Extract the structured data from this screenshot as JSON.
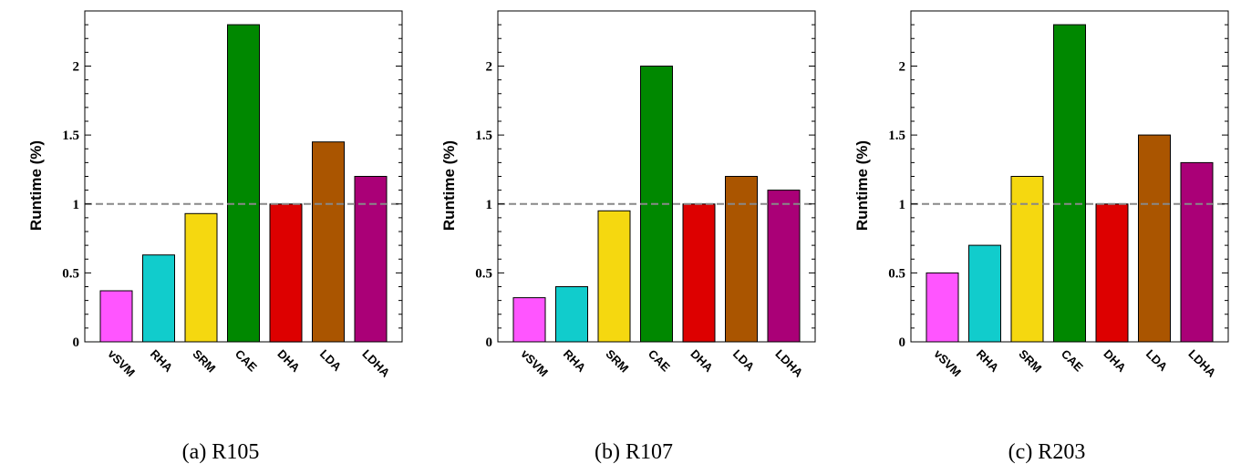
{
  "chart_data": [
    {
      "type": "bar",
      "caption": "(a) R105",
      "ylabel": "Runtime (%)",
      "categories": [
        "vSVM",
        "RHA",
        "SRM",
        "CAE",
        "DHA",
        "LDA",
        "LDHA"
      ],
      "values": [
        0.37,
        0.63,
        0.93,
        2.3,
        1.0,
        1.45,
        1.2
      ],
      "ylim": [
        0,
        2.4
      ],
      "yticks": [
        0,
        0.5,
        1,
        1.5,
        2
      ],
      "ytick_labels": [
        "0",
        "0.5",
        "1",
        "1.5",
        "2"
      ],
      "reference_line": 1,
      "grid": false
    },
    {
      "type": "bar",
      "caption": "(b) R107",
      "ylabel": "Runtime (%)",
      "categories": [
        "vSVM",
        "RHA",
        "SRM",
        "CAE",
        "DHA",
        "LDA",
        "LDHA"
      ],
      "values": [
        0.32,
        0.4,
        0.95,
        2.0,
        1.0,
        1.2,
        1.1
      ],
      "ylim": [
        0,
        2.4
      ],
      "yticks": [
        0,
        0.5,
        1,
        1.5,
        2
      ],
      "ytick_labels": [
        "0",
        "0.5",
        "1",
        "1.5",
        "2"
      ],
      "reference_line": 1,
      "grid": false
    },
    {
      "type": "bar",
      "caption": "(c) R203",
      "ylabel": "Runtime (%)",
      "categories": [
        "vSVM",
        "RHA",
        "SRM",
        "CAE",
        "DHA",
        "LDA",
        "LDHA"
      ],
      "values": [
        0.5,
        0.7,
        1.2,
        2.3,
        1.0,
        1.5,
        1.3
      ],
      "ylim": [
        0,
        2.4
      ],
      "yticks": [
        0,
        0.5,
        1,
        1.5,
        2
      ],
      "ytick_labels": [
        "0",
        "0.5",
        "1",
        "1.5",
        "2"
      ],
      "reference_line": 1,
      "grid": false
    }
  ],
  "bar_colors": [
    "#ff55ff",
    "#11cccc",
    "#f5d810",
    "#008800",
    "#dd0000",
    "#aa5500",
    "#aa0077"
  ],
  "reference_line_color": "#888888"
}
